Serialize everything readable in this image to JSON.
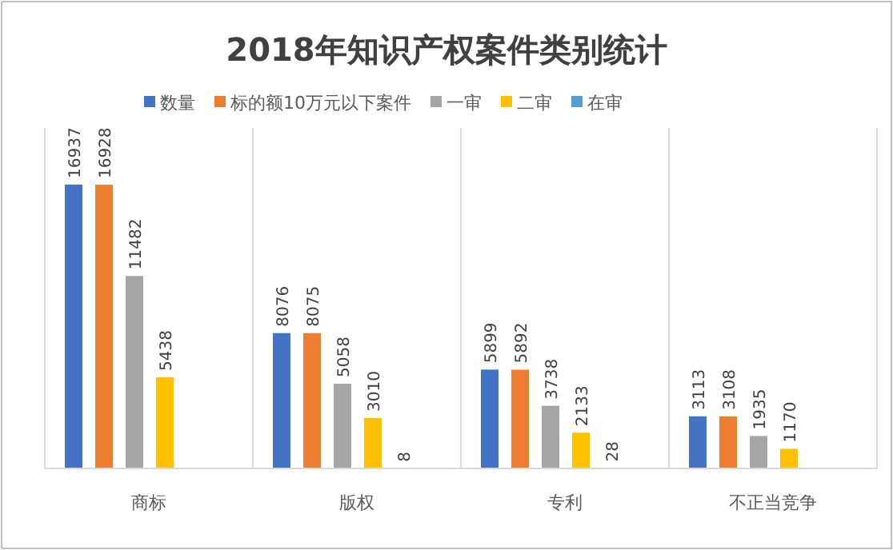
{
  "chart_data": {
    "type": "bar",
    "title": "2018年知识产权案件类别统计",
    "categories": [
      "商标",
      "版权",
      "专利",
      "不正当竞争"
    ],
    "series": [
      {
        "name": "数量",
        "color": "#4472c4",
        "values": [
          16937,
          8076,
          5899,
          3113
        ]
      },
      {
        "name": "标的额10万元以下案件",
        "color": "#ed7d31",
        "values": [
          16928,
          8075,
          5892,
          3108
        ]
      },
      {
        "name": "一审",
        "color": "#a5a5a5",
        "values": [
          11482,
          5058,
          3738,
          1935
        ]
      },
      {
        "name": "二审",
        "color": "#ffc000",
        "values": [
          5438,
          3010,
          2133,
          1170
        ]
      },
      {
        "name": "在审",
        "color": "#5b9bd5",
        "values": [
          null,
          8,
          28,
          null
        ]
      }
    ],
    "data_labels": true,
    "legend": "top",
    "grid": "x"
  }
}
